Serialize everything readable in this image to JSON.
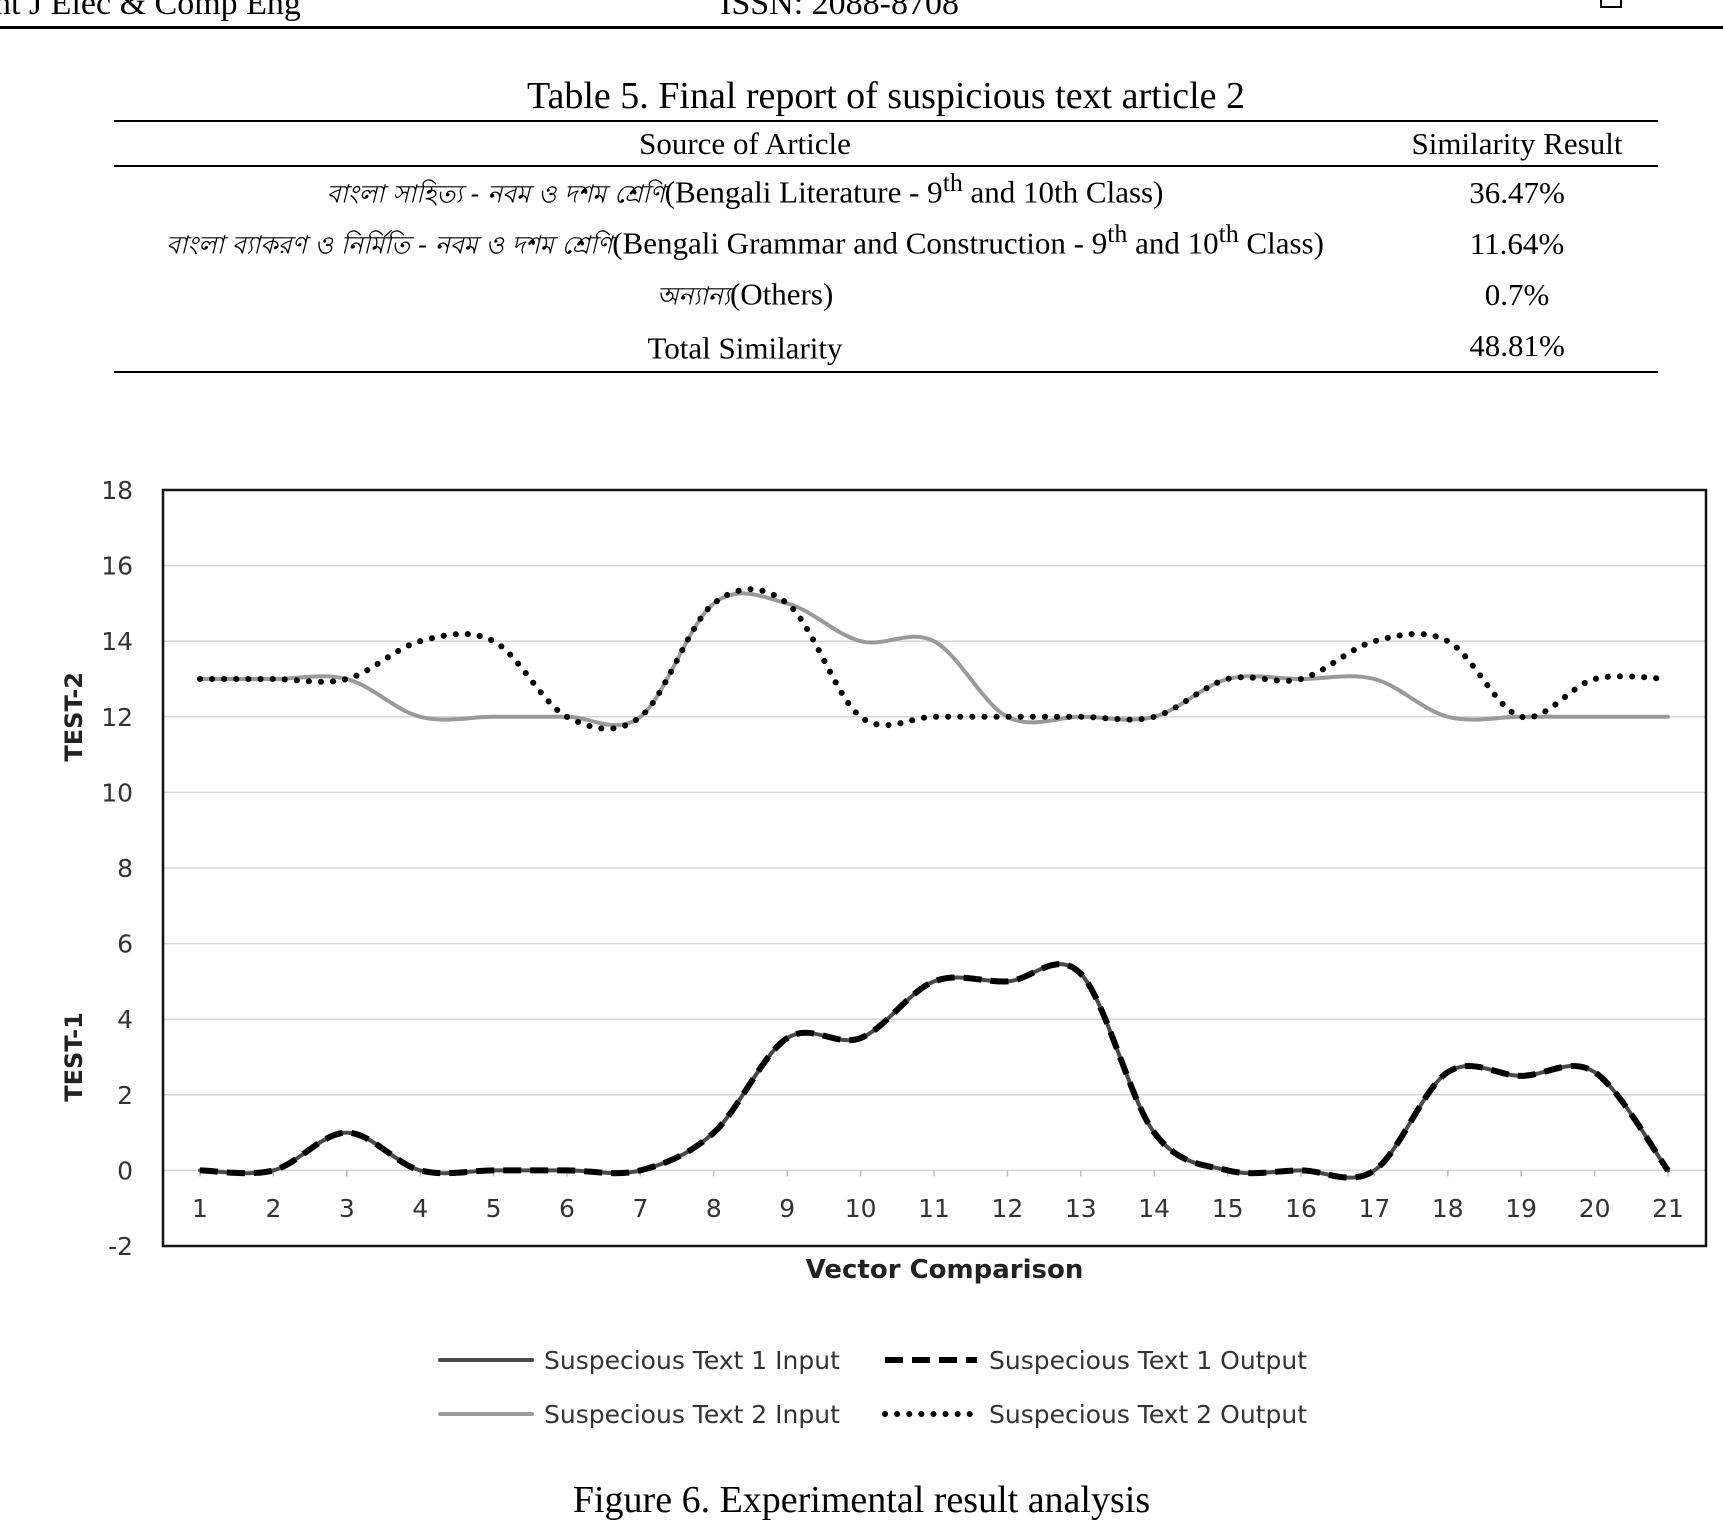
{
  "header": {
    "left": "nt J Elec & Comp Eng",
    "center": "ISSN: 2088-8708"
  },
  "table": {
    "caption": "Table 5. Final report of suspicious text article 2",
    "columns": [
      "Source of Article",
      "Similarity Result"
    ],
    "rows": [
      {
        "bengali": "বাংলা সাহিত্য - নবম ও দশম শ্রেণি",
        "pre": "(Bengali Literature - 9",
        "sup": "th",
        "post": " and 10th Class)",
        "sup2": "",
        "post2": "",
        "result": "36.47%"
      },
      {
        "bengali": "বাংলা ব্যাকরণ ও নির্মিতি - নবম ও দশম শ্রেণি",
        "pre": "(Bengali Grammar and Construction - 9",
        "sup": "th",
        "post": " and 10",
        "sup2": "th",
        "post2": " Class)",
        "result": "11.64%"
      },
      {
        "bengali": "অন্যান্য",
        "pre": "(Others)",
        "sup": "",
        "post": "",
        "sup2": "",
        "post2": "",
        "result": "0.7%"
      },
      {
        "bengali": "",
        "pre": "Total Similarity",
        "sup": "",
        "post": "",
        "sup2": "",
        "post2": "",
        "result": "48.81%"
      }
    ]
  },
  "chart_data": {
    "type": "line",
    "xlabel": "Vector Comparison",
    "ylabels": [
      "TEST-2",
      "TEST-1"
    ],
    "ylim": [
      -2,
      18
    ],
    "yticks": [
      "18",
      "16",
      "14",
      "12",
      "10",
      "8",
      "6",
      "4",
      "2",
      "0",
      "-2"
    ],
    "x": [
      1,
      2,
      3,
      4,
      5,
      6,
      7,
      8,
      9,
      10,
      11,
      12,
      13,
      14,
      15,
      16,
      17,
      18,
      19,
      20,
      21
    ],
    "grid": true,
    "legend_position": "bottom",
    "series": [
      {
        "name": "Suspecious Text 1 Input",
        "style": "solid",
        "color": "#4a4a4a",
        "values": [
          0,
          0,
          1,
          0,
          0,
          0,
          0,
          1,
          3.5,
          3.5,
          5,
          5,
          5.2,
          1,
          0,
          0,
          0,
          2.6,
          2.5,
          2.6,
          0
        ]
      },
      {
        "name": "Suspecious Text 1 Output",
        "style": "dashed",
        "color": "#000000",
        "values": [
          0,
          0,
          1,
          0,
          0,
          0,
          0,
          1,
          3.5,
          3.5,
          5,
          5,
          5.2,
          1,
          0,
          0,
          0,
          2.6,
          2.5,
          2.6,
          0
        ]
      },
      {
        "name": "Suspecious Text 2 Input",
        "style": "solid",
        "color": "#9a9a9a",
        "values": [
          13,
          13,
          13,
          12,
          12,
          12,
          12,
          15,
          15,
          14,
          14,
          12,
          12,
          12,
          13,
          13,
          13,
          12,
          12,
          12,
          12
        ]
      },
      {
        "name": "Suspecious Text 2 Output",
        "style": "dotted",
        "color": "#000000",
        "values": [
          13,
          13,
          13,
          14,
          14,
          12,
          12,
          15,
          15,
          12,
          12,
          12,
          12,
          12,
          13,
          13,
          14,
          14,
          12,
          13,
          13
        ]
      }
    ]
  },
  "figure": {
    "caption": "Figure 6. Experimental result analysis"
  }
}
